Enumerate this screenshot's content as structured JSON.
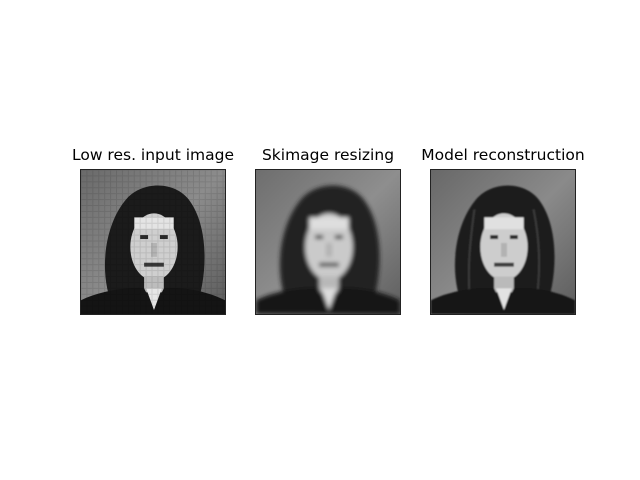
{
  "panels": [
    {
      "title": "Low res. input image",
      "style": "pixelated"
    },
    {
      "title": "Skimage resizing",
      "style": "blurred"
    },
    {
      "title": "Model reconstruction",
      "style": "sharp"
    }
  ],
  "colors": {
    "background": "#ffffff",
    "text": "#000000"
  }
}
